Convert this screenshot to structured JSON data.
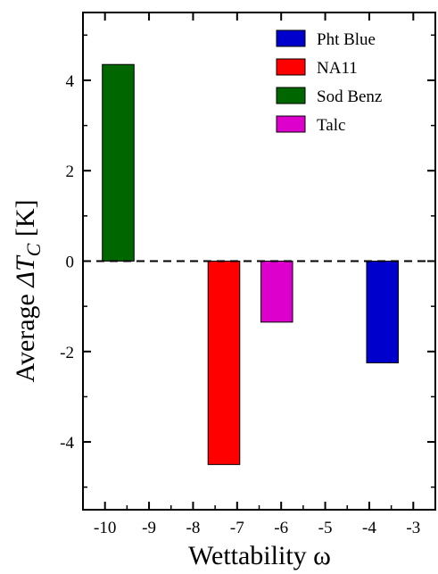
{
  "chart_data": {
    "type": "bar",
    "xlabel": "Wettability ω",
    "ylabel_prefix": "Average ",
    "ylabel_delta": "ΔT",
    "ylabel_sub": "C",
    "ylabel_unit": " [K]",
    "xlim": [
      -10.5,
      -2.5
    ],
    "ylim": [
      -5.5,
      5.5
    ],
    "xticks": [
      -10,
      -9,
      -8,
      -7,
      -6,
      -5,
      -4,
      -3
    ],
    "yticks": [
      4,
      2,
      0,
      -2,
      -4
    ],
    "bar_width": 0.72,
    "zero_line": "dashed",
    "legend_position": "top-right",
    "series": [
      {
        "name": "Pht Blue",
        "color": "#0000cc",
        "points": [
          {
            "x": -3.7,
            "y": -2.25
          }
        ]
      },
      {
        "name": "NA11",
        "color": "#ff0000",
        "points": [
          {
            "x": -7.3,
            "y": -4.5
          }
        ]
      },
      {
        "name": "Sod Benz",
        "color": "#006600",
        "points": [
          {
            "x": -9.7,
            "y": 4.35
          }
        ]
      },
      {
        "name": "Talc",
        "color": "#dd00cc",
        "points": [
          {
            "x": -6.1,
            "y": -1.35
          }
        ]
      }
    ]
  }
}
